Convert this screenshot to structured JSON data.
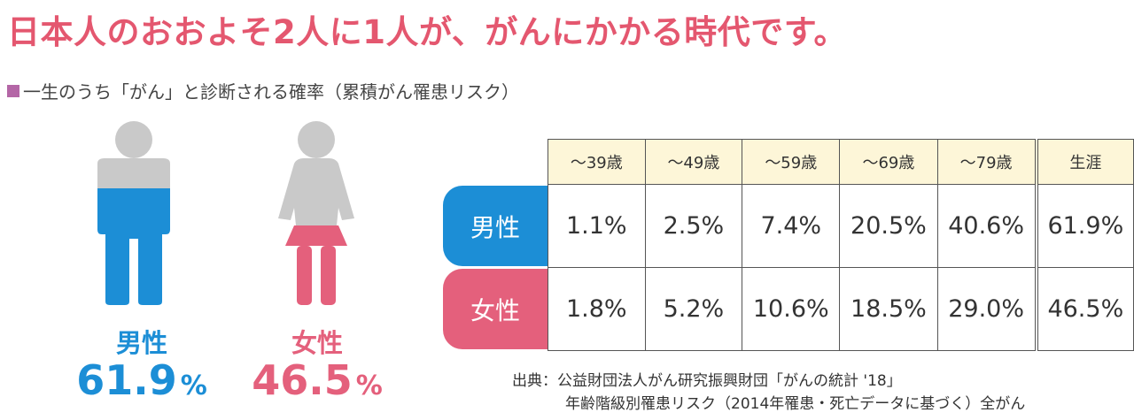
{
  "headline": "日本人のおおよそ2人に1人が、がんにかかる時代です。",
  "subtitle": "一生のうち「がん」と診断される確率（累積がん罹患リスク）",
  "figures": {
    "male": {
      "name": "男性",
      "value": "61.9",
      "unit": "%"
    },
    "female": {
      "name": "女性",
      "value": "46.5",
      "unit": "%"
    }
  },
  "colors": {
    "male": "#1c8ed6",
    "female": "#e4607c",
    "figure_gray": "#c9c9c9",
    "header_bg": "#fdf6d8",
    "headline": "#e4576f"
  },
  "chart_data": {
    "type": "table",
    "columns": [
      "～39歳",
      "～49歳",
      "～59歳",
      "～69歳",
      "～79歳",
      "生涯"
    ],
    "rows": [
      {
        "name": "男性",
        "values": [
          "1.1%",
          "2.5%",
          "7.4%",
          "20.5%",
          "40.6%",
          "61.9%"
        ]
      },
      {
        "name": "女性",
        "values": [
          "1.8%",
          "5.2%",
          "10.6%",
          "18.5%",
          "29.0%",
          "46.5%"
        ]
      }
    ]
  },
  "source": {
    "line1": "出典：公益財団法人がん研究振興財団「がんの統計 '18」",
    "line2": "年齢階級別罹患リスク（2014年罹患・死亡データに基づく）全がん"
  }
}
